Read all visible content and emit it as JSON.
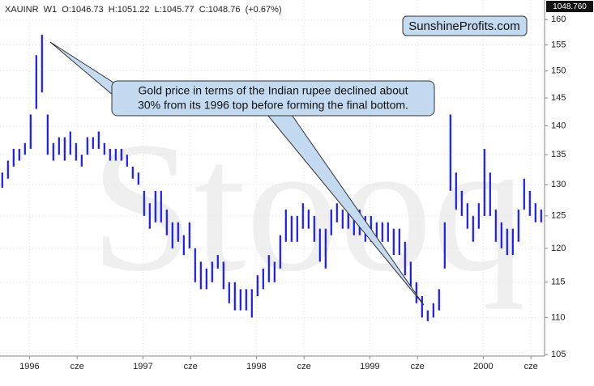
{
  "chart_data": {
    "type": "ohlc",
    "header": "XAUINR  W1  O:1046.73  H:1051.22  L:1045.77  C:1048.76  (+0.67%)",
    "last_price_label": "1048.760",
    "brand": "SunshineProfits.com",
    "watermark": "Stooq",
    "annotation": [
      "Gold price in terms of the Indian rupee declined about",
      "30% from its 1996 top before forming the final bottom."
    ],
    "color": "#1a1aff",
    "log_scale": true,
    "grid": true,
    "xlim": [
      1995.74,
      2000.54
    ],
    "xticks": [
      {
        "value": 1996,
        "label": "1996"
      },
      {
        "value": 1996.42,
        "label": "cze"
      },
      {
        "value": 1997,
        "label": "1997"
      },
      {
        "value": 1997.42,
        "label": "cze"
      },
      {
        "value": 1998,
        "label": "1998"
      },
      {
        "value": 1998.42,
        "label": "cze"
      },
      {
        "value": 1999,
        "label": "1999"
      },
      {
        "value": 1999.42,
        "label": "cze"
      },
      {
        "value": 2000,
        "label": "2000"
      },
      {
        "value": 2000.42,
        "label": "cze"
      }
    ],
    "ylim": [
      104.8,
      164
    ],
    "yticks": [
      105,
      110,
      115,
      120,
      125,
      130,
      135,
      140,
      145,
      150,
      155,
      160
    ],
    "x": [
      1995.76,
      1995.81,
      1995.86,
      1995.91,
      1995.96,
      1996.01,
      1996.06,
      1996.11,
      1996.16,
      1996.21,
      1996.26,
      1996.31,
      1996.36,
      1996.41,
      1996.46,
      1996.51,
      1996.56,
      1996.61,
      1996.66,
      1996.71,
      1996.76,
      1996.81,
      1996.86,
      1996.91,
      1996.96,
      1997.01,
      1997.06,
      1997.11,
      1997.16,
      1997.21,
      1997.26,
      1997.31,
      1997.36,
      1997.41,
      1997.46,
      1997.51,
      1997.56,
      1997.61,
      1997.66,
      1997.71,
      1997.76,
      1997.81,
      1997.86,
      1997.91,
      1997.96,
      1998.01,
      1998.06,
      1998.11,
      1998.16,
      1998.21,
      1998.26,
      1998.31,
      1998.36,
      1998.41,
      1998.46,
      1998.51,
      1998.56,
      1998.61,
      1998.66,
      1998.71,
      1998.76,
      1998.81,
      1998.86,
      1998.91,
      1998.96,
      1999.01,
      1999.06,
      1999.11,
      1999.16,
      1999.21,
      1999.26,
      1999.31,
      1999.36,
      1999.41,
      1999.46,
      1999.51,
      1999.56,
      1999.61,
      1999.66,
      1999.71,
      1999.76,
      1999.81,
      1999.86,
      1999.91,
      1999.96,
      2000.01,
      2000.06,
      2000.11,
      2000.16,
      2000.21,
      2000.26,
      2000.31,
      2000.36,
      2000.41,
      2000.46,
      2000.51
    ],
    "high": [
      132,
      134,
      136,
      136,
      137,
      142,
      153,
      157,
      142,
      137,
      138,
      138,
      139,
      137,
      135,
      138,
      138,
      139,
      137,
      136,
      136,
      136,
      135,
      133,
      132,
      129,
      127,
      129,
      129,
      126,
      124,
      124,
      122,
      124,
      120,
      118,
      117,
      118,
      119,
      118,
      115,
      115,
      114,
      114,
      114,
      116,
      117,
      119,
      118,
      122,
      126,
      125,
      125,
      127,
      126,
      125,
      123,
      123,
      126,
      127,
      126,
      126,
      125,
      126,
      125,
      125,
      124,
      124,
      124,
      123,
      123,
      121,
      118,
      115,
      113,
      111,
      112,
      114,
      124,
      142,
      132,
      129,
      127,
      125,
      127,
      136,
      132,
      126,
      124,
      123,
      123,
      126,
      131,
      129,
      127,
      126
    ],
    "low": [
      129.5,
      131,
      133,
      134,
      135,
      136,
      143,
      146,
      135,
      134,
      135,
      134,
      135,
      134,
      133,
      135,
      136,
      136,
      135,
      134,
      134,
      134,
      133,
      131,
      130,
      125,
      123,
      124,
      124,
      122,
      120,
      121,
      119,
      120,
      115,
      114,
      114,
      115,
      117,
      114,
      112,
      111,
      111,
      111,
      110,
      113,
      114,
      115,
      115,
      117,
      121,
      121,
      121,
      123,
      123,
      121,
      118,
      117,
      122,
      124,
      123,
      123,
      122,
      122,
      121,
      121,
      121,
      121,
      121,
      119,
      119,
      116,
      114,
      112,
      110,
      109.5,
      110,
      111,
      117,
      129,
      126,
      125,
      123,
      121,
      123,
      125,
      125,
      121,
      120,
      119,
      119,
      121,
      126,
      125,
      124,
      124
    ]
  }
}
